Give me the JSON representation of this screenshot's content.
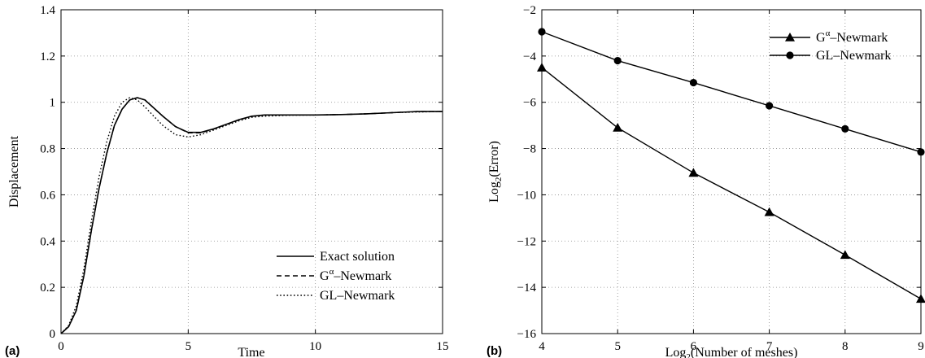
{
  "chart_data": [
    {
      "panel_label": "(a)",
      "type": "line",
      "xlabel": "Time",
      "ylabel": "Displacement",
      "xlim": [
        0,
        15
      ],
      "ylim": [
        0,
        1.4
      ],
      "xticks": [
        "0",
        "5",
        "10",
        "15"
      ],
      "yticks": [
        "0",
        "0.2",
        "0.4",
        "0.6",
        "0.8",
        "1",
        "1.2",
        "1.4"
      ],
      "grid": true,
      "legend_position": "bottom-right",
      "series": [
        {
          "name": "Exact solution",
          "style": "solid",
          "x": [
            0,
            0.3,
            0.6,
            0.9,
            1.2,
            1.5,
            1.8,
            2.1,
            2.4,
            2.7,
            3.0,
            3.3,
            3.6,
            4.0,
            4.5,
            5.0,
            5.5,
            6.0,
            6.5,
            7.0,
            7.5,
            8.0,
            8.5,
            9.0,
            10.0,
            11.0,
            12.0,
            13.0,
            14.0,
            15.0
          ],
          "y": [
            0,
            0.03,
            0.1,
            0.25,
            0.45,
            0.63,
            0.78,
            0.9,
            0.97,
            1.01,
            1.02,
            1.01,
            0.98,
            0.94,
            0.895,
            0.87,
            0.87,
            0.885,
            0.905,
            0.925,
            0.94,
            0.945,
            0.945,
            0.945,
            0.945,
            0.947,
            0.95,
            0.955,
            0.96,
            0.96
          ]
        },
        {
          "name": "Gα–Newmark",
          "style": "dashed",
          "x": [
            0,
            0.3,
            0.6,
            0.9,
            1.2,
            1.5,
            1.8,
            2.1,
            2.4,
            2.7,
            3.0,
            3.3,
            3.6,
            4.0,
            4.5,
            5.0,
            5.5,
            6.0,
            6.5,
            7.0,
            7.5,
            8.0,
            8.5,
            9.0,
            10.0,
            11.0,
            12.0,
            13.0,
            14.0,
            15.0
          ],
          "y": [
            0,
            0.03,
            0.1,
            0.25,
            0.45,
            0.63,
            0.78,
            0.9,
            0.97,
            1.01,
            1.02,
            1.01,
            0.98,
            0.94,
            0.895,
            0.868,
            0.868,
            0.884,
            0.904,
            0.924,
            0.939,
            0.945,
            0.945,
            0.945,
            0.945,
            0.947,
            0.95,
            0.955,
            0.96,
            0.96
          ]
        },
        {
          "name": "GL–Newmark",
          "style": "dotted",
          "x": [
            0,
            0.3,
            0.6,
            0.9,
            1.2,
            1.5,
            1.8,
            2.1,
            2.4,
            2.7,
            3.0,
            3.3,
            3.6,
            4.0,
            4.5,
            5.0,
            5.5,
            6.0,
            6.5,
            7.0,
            7.5,
            8.0,
            8.5,
            9.0,
            10.0,
            11.0,
            12.0,
            13.0,
            14.0,
            15.0
          ],
          "y": [
            0,
            0.035,
            0.12,
            0.28,
            0.49,
            0.68,
            0.83,
            0.94,
            1.0,
            1.02,
            1.01,
            0.98,
            0.945,
            0.9,
            0.86,
            0.85,
            0.86,
            0.88,
            0.9,
            0.92,
            0.935,
            0.94,
            0.942,
            0.944,
            0.945,
            0.947,
            0.95,
            0.955,
            0.958,
            0.96
          ]
        }
      ]
    },
    {
      "panel_label": "(b)",
      "type": "line",
      "xlabel": "Log₂(Number of meshes)",
      "ylabel": "Log₂(Error)",
      "xlim": [
        4,
        9
      ],
      "ylim": [
        -16,
        -2
      ],
      "xticks": [
        "4",
        "5",
        "6",
        "7",
        "8",
        "9"
      ],
      "yticks": [
        "−16",
        "−14",
        "−12",
        "−10",
        "−8",
        "−6",
        "−4",
        "−2"
      ],
      "grid": true,
      "legend_position": "top-right",
      "series": [
        {
          "name": "Gα–Newmark",
          "marker": "triangle",
          "x": [
            4,
            5,
            6,
            7,
            8,
            9
          ],
          "y": [
            -4.5,
            -7.1,
            -9.05,
            -10.75,
            -12.6,
            -14.5
          ]
        },
        {
          "name": "GL–Newmark",
          "marker": "circle",
          "x": [
            4,
            5,
            6,
            7,
            8,
            9
          ],
          "y": [
            -2.95,
            -4.2,
            -5.15,
            -6.15,
            -7.15,
            -8.15
          ]
        }
      ]
    }
  ]
}
